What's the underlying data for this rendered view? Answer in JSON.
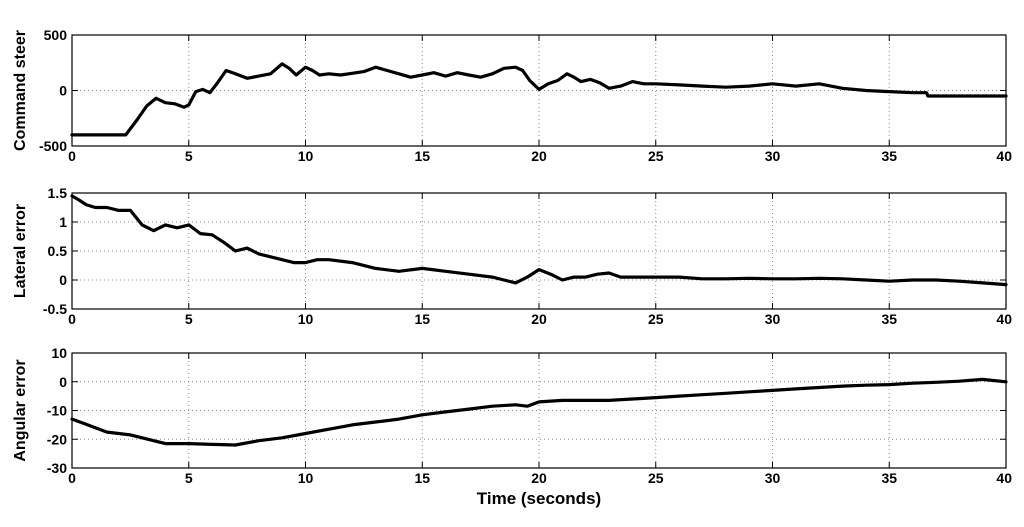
{
  "chart_data": [
    {
      "type": "line",
      "ylabel": "Command steer",
      "xlim": [
        0,
        40
      ],
      "ylim": [
        -500,
        500
      ],
      "xticks": [
        "0",
        "5",
        "10",
        "15",
        "20",
        "25",
        "30",
        "35",
        "40"
      ],
      "yticks": [
        "500",
        "0",
        "-500"
      ],
      "grid": true,
      "series": [
        {
          "x": [
            0,
            1,
            2,
            2.3,
            2.8,
            3.2,
            3.6,
            4.0,
            4.4,
            4.8,
            5.0,
            5.3,
            5.6,
            5.9,
            6.2,
            6.6,
            7.0,
            7.5,
            8.0,
            8.5,
            9.0,
            9.3,
            9.6,
            10.0,
            10.3,
            10.6,
            11.0,
            11.5,
            12.0,
            12.5,
            13.0,
            13.5,
            14.0,
            14.5,
            15.0,
            15.5,
            16.0,
            16.5,
            17.0,
            17.5,
            18.0,
            18.5,
            19.0,
            19.3,
            19.6,
            20.0,
            20.4,
            20.8,
            21.2,
            21.5,
            21.8,
            22.2,
            22.6,
            23.0,
            23.5,
            24.0,
            24.5,
            25.0,
            26.0,
            27.0,
            28.0,
            29.0,
            30.0,
            31.0,
            32.0,
            33.0,
            34.0,
            35.0,
            36.0,
            36.6,
            36.65,
            38.0,
            40.0
          ],
          "values": [
            -400,
            -400,
            -400,
            -400,
            -260,
            -140,
            -70,
            -110,
            -120,
            -150,
            -130,
            -10,
            10,
            -20,
            60,
            180,
            150,
            110,
            130,
            150,
            240,
            200,
            140,
            210,
            180,
            140,
            150,
            140,
            155,
            170,
            210,
            180,
            150,
            120,
            140,
            160,
            130,
            160,
            140,
            120,
            150,
            200,
            210,
            180,
            90,
            10,
            60,
            90,
            150,
            120,
            80,
            100,
            70,
            20,
            40,
            80,
            60,
            60,
            50,
            40,
            30,
            40,
            60,
            40,
            60,
            20,
            0,
            -10,
            -20,
            -20,
            -50,
            -50,
            -50
          ]
        }
      ]
    },
    {
      "type": "line",
      "ylabel": "Lateral error",
      "xlim": [
        0,
        40
      ],
      "ylim": [
        -0.5,
        1.5
      ],
      "xticks": [
        "0",
        "5",
        "10",
        "15",
        "20",
        "25",
        "30",
        "35",
        "40"
      ],
      "yticks": [
        "1.5",
        "1",
        "0.5",
        "0",
        "-0.5"
      ],
      "grid": true,
      "series": [
        {
          "x": [
            0,
            0.3,
            0.6,
            1,
            1.5,
            2,
            2.5,
            3,
            3.5,
            4,
            4.5,
            5,
            5.5,
            6,
            6.5,
            7,
            7.5,
            8,
            8.5,
            9,
            9.5,
            10,
            10.5,
            11,
            12,
            13,
            14,
            15,
            16,
            17,
            18,
            18.5,
            19,
            19.5,
            20,
            20.5,
            21,
            21.5,
            22,
            22.5,
            23,
            23.5,
            24,
            25,
            26,
            27,
            28,
            29,
            30,
            31,
            32,
            33,
            34,
            35,
            36,
            37,
            38,
            39,
            40
          ],
          "values": [
            1.45,
            1.38,
            1.3,
            1.25,
            1.25,
            1.2,
            1.2,
            0.95,
            0.85,
            0.95,
            0.9,
            0.95,
            0.8,
            0.78,
            0.65,
            0.5,
            0.55,
            0.45,
            0.4,
            0.35,
            0.3,
            0.3,
            0.35,
            0.35,
            0.3,
            0.2,
            0.15,
            0.2,
            0.15,
            0.1,
            0.05,
            0.0,
            -0.05,
            0.05,
            0.18,
            0.1,
            0.0,
            0.05,
            0.05,
            0.1,
            0.12,
            0.05,
            0.05,
            0.05,
            0.05,
            0.02,
            0.02,
            0.03,
            0.02,
            0.02,
            0.03,
            0.02,
            0.0,
            -0.02,
            0.0,
            0.0,
            -0.02,
            -0.05,
            -0.08
          ]
        }
      ]
    },
    {
      "type": "line",
      "ylabel": "Angular error",
      "xlabel": "Time (seconds)",
      "xlim": [
        0,
        40
      ],
      "ylim": [
        -30,
        10
      ],
      "xticks": [
        "0",
        "5",
        "10",
        "15",
        "20",
        "25",
        "30",
        "35",
        "40"
      ],
      "yticks": [
        "10",
        "0",
        "-10",
        "-20",
        "-30"
      ],
      "grid": true,
      "series": [
        {
          "x": [
            0,
            0.5,
            1,
            1.5,
            2,
            2.5,
            3,
            3.5,
            4,
            5,
            6,
            7,
            8,
            9,
            10,
            11,
            12,
            13,
            14,
            15,
            16,
            17,
            18,
            19,
            19.5,
            20,
            21,
            22,
            23,
            24,
            25,
            26,
            27,
            28,
            29,
            30,
            31,
            32,
            33,
            34,
            35,
            36,
            37,
            38,
            39,
            40
          ],
          "values": [
            -13,
            -14.5,
            -16,
            -17.5,
            -18,
            -18.5,
            -19.5,
            -20.5,
            -21.5,
            -21.5,
            -21.8,
            -22,
            -20.5,
            -19.5,
            -18,
            -16.5,
            -15,
            -14,
            -13,
            -11.5,
            -10.5,
            -9.5,
            -8.5,
            -8,
            -8.5,
            -7,
            -6.5,
            -6.5,
            -6.5,
            -6,
            -5.5,
            -5,
            -4.5,
            -4,
            -3.5,
            -3,
            -2.5,
            -2,
            -1.5,
            -1.2,
            -1,
            -0.5,
            -0.2,
            0.2,
            0.8,
            0
          ]
        }
      ]
    }
  ]
}
